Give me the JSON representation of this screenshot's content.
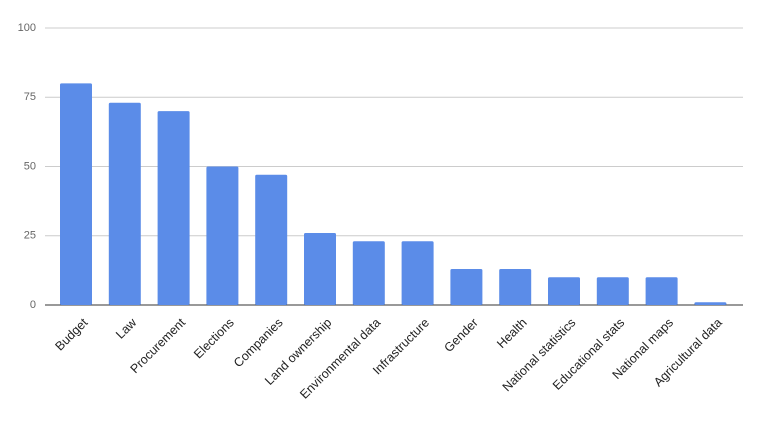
{
  "chart_data": {
    "type": "bar",
    "categories": [
      "Budget",
      "Law",
      "Procurement",
      "Elections",
      "Companies",
      "Land ownership",
      "Environmental data",
      "Infrastructure",
      "Gender",
      "Health",
      "National statistics",
      "Educational stats",
      "National maps",
      "Agricultural data"
    ],
    "values": [
      80,
      73,
      70,
      50,
      47,
      26,
      23,
      23,
      13,
      13,
      10,
      10,
      10,
      1
    ],
    "color": "#5b8ce8",
    "ylim": [
      0,
      100
    ],
    "yticks": [
      0,
      25,
      50,
      75,
      100
    ],
    "grid": true
  }
}
